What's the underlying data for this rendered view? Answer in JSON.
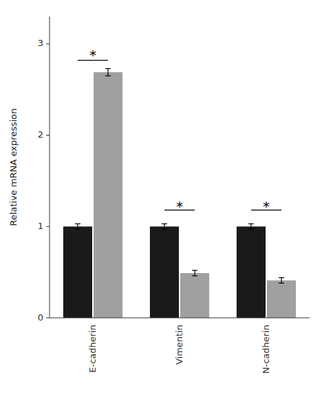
{
  "chart_data": {
    "type": "bar",
    "categories": [
      "E-cadherin",
      "Vimentin",
      "N-cadherin"
    ],
    "series": [
      {
        "color": "#1a1a1a",
        "values": [
          1.0,
          1.0,
          1.0
        ],
        "errors": [
          0.03,
          0.03,
          0.03
        ]
      },
      {
        "color": "#a0a0a0",
        "values": [
          2.69,
          0.49,
          0.41
        ],
        "errors": [
          0.04,
          0.03,
          0.03
        ]
      }
    ],
    "ylabel": "Relative mRNA expression",
    "ylim": [
      0,
      3.3
    ],
    "yticks": [
      0,
      1,
      2,
      3
    ],
    "grid": false,
    "annotations": [
      {
        "text": "*",
        "category": "E-cadherin",
        "line_y": 2.82,
        "y": 2.9
      },
      {
        "text": "*",
        "category": "Vimentin",
        "line_y": 1.18,
        "y": 1.24
      },
      {
        "text": "*",
        "category": "N-cadherin",
        "line_y": 1.18,
        "y": 1.24
      }
    ]
  }
}
